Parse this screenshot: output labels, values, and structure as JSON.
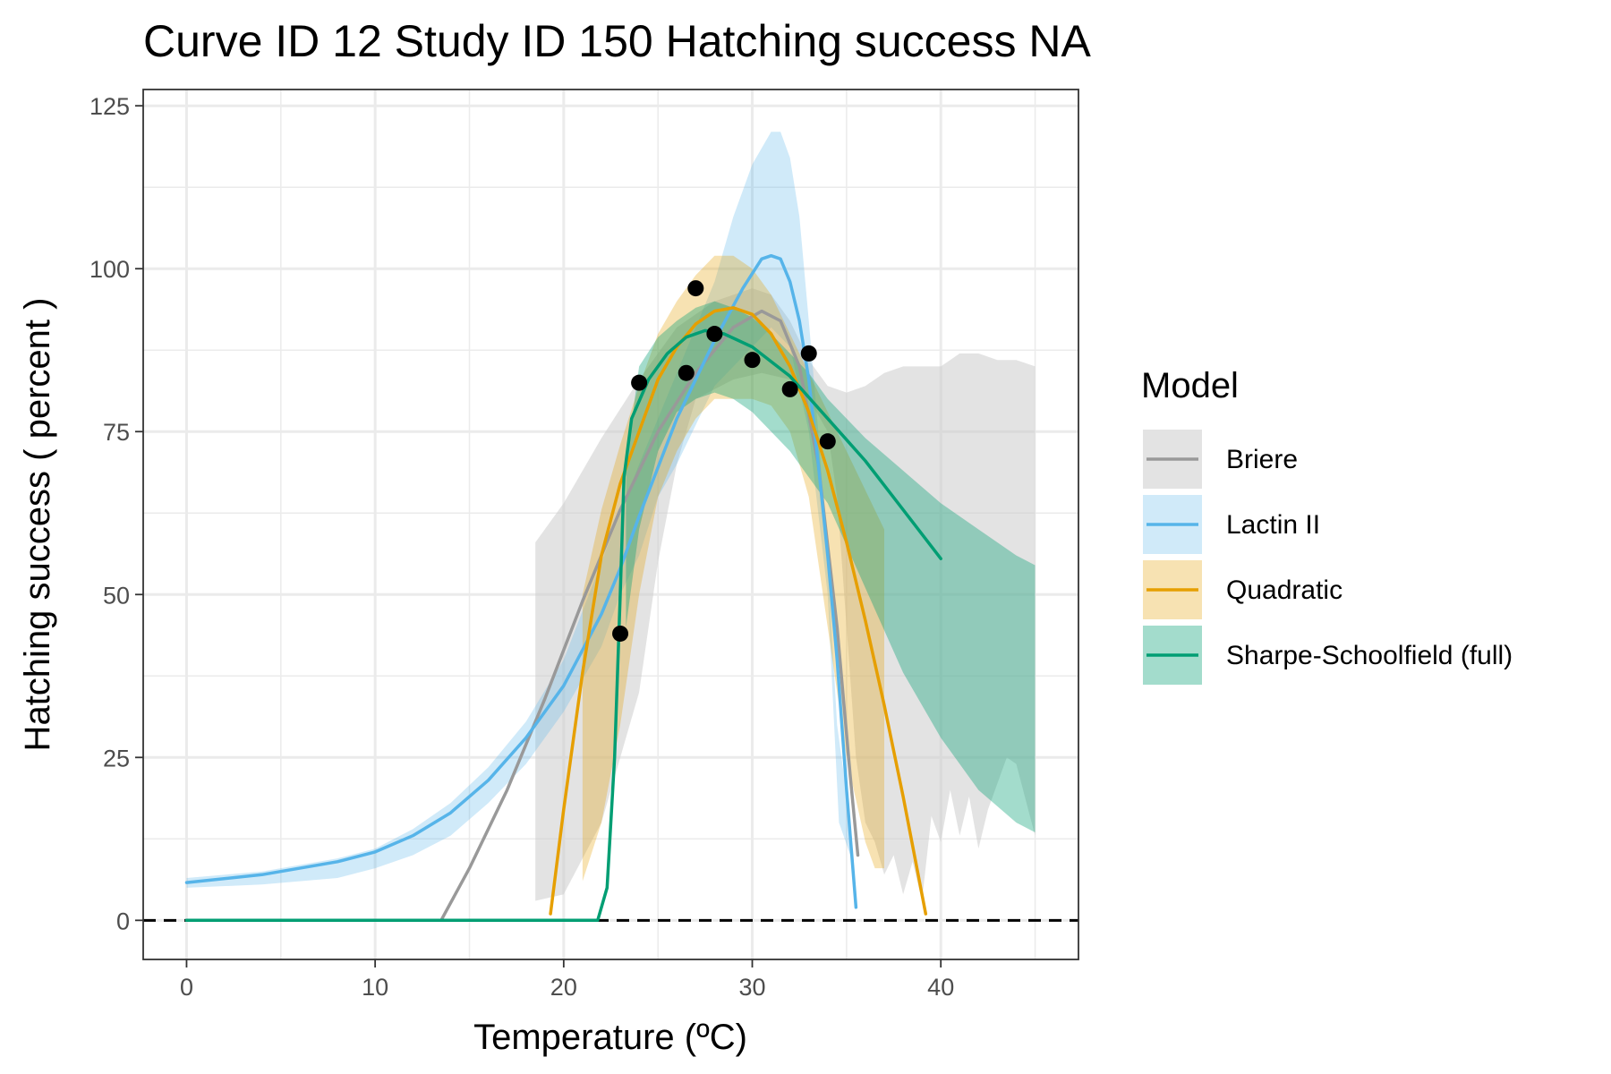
{
  "chart_data": {
    "type": "line",
    "title": "Curve ID 12 Study ID 150 Hatching success NA",
    "xlabel": "Temperature (ºC)",
    "ylabel": "Hatching success ( percent )",
    "xlim": [
      -2.3,
      47.3
    ],
    "ylim": [
      -6,
      127.5
    ],
    "x_ticks": [
      0,
      10,
      20,
      30,
      40
    ],
    "y_ticks": [
      0,
      25,
      50,
      75,
      100,
      125
    ],
    "grid": true,
    "zero_line": "dashed",
    "legend": {
      "title": "Model",
      "placement": "right",
      "entries": [
        "Briere",
        "Lactin II",
        "Quadratic",
        "Sharpe-Schoolfield (full)"
      ]
    },
    "observations": [
      {
        "x": 23,
        "y": 44
      },
      {
        "x": 24,
        "y": 82.5
      },
      {
        "x": 26.5,
        "y": 84
      },
      {
        "x": 27,
        "y": 97
      },
      {
        "x": 28,
        "y": 90
      },
      {
        "x": 30,
        "y": 86
      },
      {
        "x": 32,
        "y": 81.5
      },
      {
        "x": 33,
        "y": 87
      },
      {
        "x": 34,
        "y": 73.5
      }
    ],
    "series": [
      {
        "name": "Briere",
        "color": "#999999",
        "band_color": "#cccccc",
        "band_opacity": 0.55,
        "line": [
          [
            0,
            0
          ],
          [
            13.5,
            0
          ],
          [
            15,
            8
          ],
          [
            17,
            20
          ],
          [
            19,
            34
          ],
          [
            21,
            49
          ],
          [
            23,
            63
          ],
          [
            25,
            75
          ],
          [
            27,
            84
          ],
          [
            29,
            91
          ],
          [
            30.5,
            93.5
          ],
          [
            31.5,
            92
          ],
          [
            32.5,
            85
          ],
          [
            33.5,
            70
          ],
          [
            34.5,
            45
          ],
          [
            35.2,
            22
          ],
          [
            35.6,
            10
          ]
        ],
        "band_upper": [
          [
            18.5,
            58
          ],
          [
            20,
            64
          ],
          [
            22,
            74
          ],
          [
            24,
            83
          ],
          [
            26,
            91
          ],
          [
            28,
            95
          ],
          [
            30,
            97
          ],
          [
            31,
            96
          ],
          [
            32,
            92
          ],
          [
            33,
            86
          ],
          [
            34,
            82
          ],
          [
            35,
            81
          ],
          [
            36,
            82
          ],
          [
            37,
            84
          ],
          [
            38,
            85
          ],
          [
            39,
            85
          ],
          [
            40,
            85
          ],
          [
            40.5,
            86
          ],
          [
            41,
            87
          ],
          [
            42,
            87
          ],
          [
            43,
            86
          ],
          [
            44,
            86
          ],
          [
            45,
            85
          ]
        ],
        "band_lower": [
          [
            45,
            13
          ],
          [
            44,
            24
          ],
          [
            43.5,
            25
          ],
          [
            43,
            21
          ],
          [
            42.5,
            17
          ],
          [
            42,
            11
          ],
          [
            41.5,
            19
          ],
          [
            41,
            13
          ],
          [
            40.5,
            20
          ],
          [
            40,
            12
          ],
          [
            39.5,
            16
          ],
          [
            39,
            3
          ],
          [
            38.5,
            9
          ],
          [
            38,
            4
          ],
          [
            37.5,
            10
          ],
          [
            37,
            7
          ],
          [
            36.5,
            12
          ],
          [
            36,
            15
          ],
          [
            35.5,
            25
          ],
          [
            35,
            45
          ],
          [
            34.5,
            65
          ],
          [
            34,
            75
          ],
          [
            33,
            80
          ],
          [
            32,
            83
          ],
          [
            30.5,
            84
          ],
          [
            29,
            83
          ],
          [
            27,
            80
          ],
          [
            26,
            70
          ],
          [
            25,
            55
          ],
          [
            24,
            35
          ],
          [
            22,
            15
          ],
          [
            20,
            4
          ],
          [
            18.5,
            3
          ]
        ]
      },
      {
        "name": "Lactin II",
        "color": "#56b4e9",
        "band_color": "#56b4e9",
        "band_opacity": 0.28,
        "line": [
          [
            0,
            5.8
          ],
          [
            4,
            7
          ],
          [
            8,
            9
          ],
          [
            10,
            10.5
          ],
          [
            12,
            13
          ],
          [
            14,
            16.5
          ],
          [
            16,
            21.5
          ],
          [
            18,
            28
          ],
          [
            20,
            36
          ],
          [
            22,
            47
          ],
          [
            23,
            54
          ],
          [
            24,
            62
          ],
          [
            26,
            77
          ],
          [
            28,
            89
          ],
          [
            29.5,
            97
          ],
          [
            30.5,
            101.5
          ],
          [
            31,
            102
          ],
          [
            31.5,
            101.5
          ],
          [
            32,
            98
          ],
          [
            32.5,
            92
          ],
          [
            33,
            83
          ],
          [
            33.5,
            70
          ],
          [
            34,
            56
          ],
          [
            34.5,
            40
          ],
          [
            35,
            20
          ],
          [
            35.5,
            2
          ]
        ],
        "band_upper": [
          [
            0,
            6.5
          ],
          [
            4,
            7.5
          ],
          [
            8,
            9.5
          ],
          [
            10,
            11
          ],
          [
            12,
            14
          ],
          [
            14,
            18
          ],
          [
            16,
            23.5
          ],
          [
            18,
            30.5
          ],
          [
            20,
            40
          ],
          [
            22,
            55
          ],
          [
            24,
            70
          ],
          [
            26,
            84
          ],
          [
            28,
            98
          ],
          [
            29,
            108
          ],
          [
            30,
            116
          ],
          [
            31,
            121
          ],
          [
            31.5,
            121
          ],
          [
            32,
            117
          ],
          [
            32.5,
            108
          ],
          [
            33,
            92
          ],
          [
            33.5,
            75
          ],
          [
            34,
            55
          ],
          [
            34.5,
            30
          ],
          [
            35.2,
            15
          ]
        ],
        "band_lower": [
          [
            35.2,
            10
          ],
          [
            34.6,
            15
          ],
          [
            34,
            50
          ],
          [
            33,
            75
          ],
          [
            32,
            88
          ],
          [
            31,
            91
          ],
          [
            30,
            88
          ],
          [
            28,
            82
          ],
          [
            26,
            70
          ],
          [
            25,
            65
          ],
          [
            24,
            56
          ],
          [
            23,
            50
          ],
          [
            22,
            42
          ],
          [
            20,
            32
          ],
          [
            18,
            24
          ],
          [
            16,
            18
          ],
          [
            14,
            13
          ],
          [
            12,
            10
          ],
          [
            10,
            8
          ],
          [
            8,
            6.5
          ],
          [
            4,
            5.5
          ],
          [
            0,
            5
          ]
        ]
      },
      {
        "name": "Quadratic",
        "color": "#e69f00",
        "band_color": "#e69f00",
        "band_opacity": 0.3,
        "line": [
          [
            19.3,
            1
          ],
          [
            20,
            17
          ],
          [
            21,
            38
          ],
          [
            22,
            56
          ],
          [
            23,
            67
          ],
          [
            24,
            75
          ],
          [
            25,
            83
          ],
          [
            26,
            88
          ],
          [
            27,
            91.5
          ],
          [
            28,
            93.5
          ],
          [
            29,
            94
          ],
          [
            30,
            93
          ],
          [
            31,
            90
          ],
          [
            32,
            85
          ],
          [
            33,
            78
          ],
          [
            34,
            69
          ],
          [
            35,
            58
          ],
          [
            36,
            46
          ],
          [
            37,
            33
          ],
          [
            38,
            19
          ],
          [
            39.2,
            1
          ]
        ],
        "band_upper": [
          [
            21,
            50
          ],
          [
            22,
            63
          ],
          [
            23,
            73
          ],
          [
            24,
            82
          ],
          [
            25,
            90
          ],
          [
            26,
            95
          ],
          [
            27,
            99
          ],
          [
            28,
            102
          ],
          [
            29,
            102
          ],
          [
            30,
            100
          ],
          [
            31,
            96
          ],
          [
            32,
            90
          ],
          [
            33,
            84
          ],
          [
            34,
            78
          ],
          [
            35,
            72
          ],
          [
            36,
            66
          ],
          [
            37,
            60
          ]
        ],
        "band_lower": [
          [
            37,
            8
          ],
          [
            36.5,
            8
          ],
          [
            36,
            12
          ],
          [
            35,
            25
          ],
          [
            34,
            45
          ],
          [
            33,
            65
          ],
          [
            32,
            75
          ],
          [
            31,
            79
          ],
          [
            30,
            80
          ],
          [
            29,
            80
          ],
          [
            28,
            80
          ],
          [
            27,
            77
          ],
          [
            26,
            72
          ],
          [
            25,
            65
          ],
          [
            24,
            50
          ],
          [
            23,
            30
          ],
          [
            22,
            15
          ],
          [
            21,
            6
          ]
        ]
      },
      {
        "name": "Sharpe-Schoolfield (full)",
        "color": "#009e73",
        "band_color": "#009e73",
        "band_opacity": 0.36,
        "line": [
          [
            0,
            0
          ],
          [
            21.8,
            0
          ],
          [
            22.3,
            5
          ],
          [
            22.7,
            25
          ],
          [
            23,
            50
          ],
          [
            23.2,
            68
          ],
          [
            23.6,
            77
          ],
          [
            24.5,
            83
          ],
          [
            25.5,
            87
          ],
          [
            26.5,
            89.5
          ],
          [
            27.5,
            90.5
          ],
          [
            28.5,
            90
          ],
          [
            30,
            88
          ],
          [
            32,
            83.5
          ],
          [
            34,
            77
          ],
          [
            36,
            70.5
          ],
          [
            38,
            63
          ],
          [
            40,
            55.5
          ]
        ],
        "band_upper": [
          [
            23.3,
            70
          ],
          [
            24,
            85
          ],
          [
            25,
            89.5
          ],
          [
            26,
            92
          ],
          [
            27,
            94
          ],
          [
            28,
            95
          ],
          [
            29,
            94
          ],
          [
            30,
            92.5
          ],
          [
            31,
            90
          ],
          [
            32,
            87
          ],
          [
            33,
            84
          ],
          [
            34,
            80
          ],
          [
            36,
            74
          ],
          [
            38,
            69
          ],
          [
            40,
            64
          ],
          [
            42,
            60
          ],
          [
            44,
            56
          ],
          [
            45,
            54.5
          ]
        ],
        "band_lower": [
          [
            45,
            13.5
          ],
          [
            44,
            15
          ],
          [
            42,
            20
          ],
          [
            40,
            28
          ],
          [
            38,
            38
          ],
          [
            36,
            51
          ],
          [
            34,
            64
          ],
          [
            33,
            68
          ],
          [
            32,
            72
          ],
          [
            31,
            75
          ],
          [
            30,
            78
          ],
          [
            29,
            80
          ],
          [
            28,
            81
          ],
          [
            27,
            80
          ],
          [
            26,
            78
          ],
          [
            25,
            72
          ],
          [
            24,
            60
          ],
          [
            23.3,
            45
          ]
        ]
      }
    ]
  }
}
